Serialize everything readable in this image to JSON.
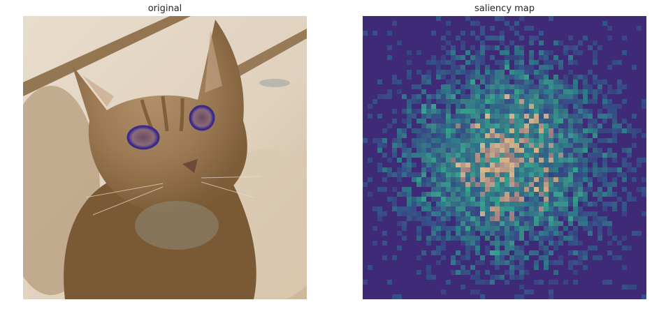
{
  "figure": {
    "left_title": "original",
    "right_title": "saliency map"
  },
  "colors": {
    "cat_dark": "#7a5a35",
    "cat_mid": "#a07d58",
    "background_light": "#e6d9c6",
    "eye": "#3b2a8a",
    "saliency_bg": "#3f2a78",
    "saliency_mid": "#2f8f8c",
    "saliency_high": "#d8b88a"
  }
}
